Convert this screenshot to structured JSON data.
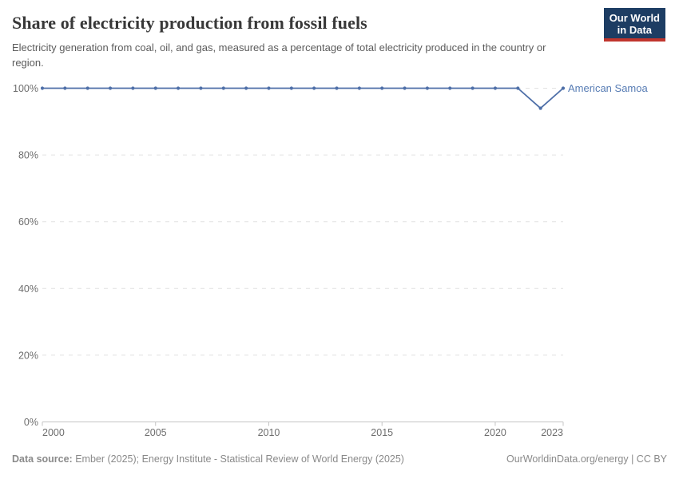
{
  "header": {
    "title": "Share of electricity production from fossil fuels",
    "subtitle": "Electricity generation from coal, oil, and gas, measured as a percentage of total electricity produced in the country or region.",
    "logo": {
      "line1": "Our World",
      "line2": "in Data"
    }
  },
  "chart_data": {
    "type": "line",
    "title": "Share of electricity production from fossil fuels",
    "x": [
      2000,
      2001,
      2002,
      2003,
      2004,
      2005,
      2006,
      2007,
      2008,
      2009,
      2010,
      2011,
      2012,
      2013,
      2014,
      2015,
      2016,
      2017,
      2018,
      2019,
      2020,
      2021,
      2022,
      2023
    ],
    "series": [
      {
        "name": "American Samoa",
        "color": "#4e6fa8",
        "label_color": "#577cb4",
        "values": [
          100,
          100,
          100,
          100,
          100,
          100,
          100,
          100,
          100,
          100,
          100,
          100,
          100,
          100,
          100,
          100,
          100,
          100,
          100,
          100,
          100,
          100,
          94,
          100
        ]
      }
    ],
    "xlim": [
      2000,
      2023
    ],
    "ylim": [
      0,
      100
    ],
    "x_ticks": [
      2000,
      2005,
      2010,
      2015,
      2020,
      2023
    ],
    "x_tick_labels": [
      "2000",
      "2005",
      "2010",
      "2015",
      "2020",
      "2023"
    ],
    "y_ticks": [
      0,
      20,
      40,
      60,
      80,
      100
    ],
    "y_tick_labels": [
      "0%",
      "20%",
      "40%",
      "60%",
      "80%",
      "100%"
    ],
    "grid": "horizontal-dashed",
    "legend_position": "end-of-line",
    "xlabel": "",
    "ylabel": ""
  },
  "footer": {
    "source_label": "Data source:",
    "source_text": "Ember (2025); Energy Institute - Statistical Review of World Energy (2025)",
    "link_text": "OurWorldinData.org/energy | CC BY"
  },
  "colors": {
    "line": "#4e6fa8",
    "grid": "#e2e2e2",
    "axis": "#c4c4c4",
    "tick_label": "#6e6e6e",
    "title": "#383838",
    "subtitle": "#5b5b5b",
    "logo_bg": "#1d3d63",
    "logo_stripe": "#c0352d",
    "footer_text": "#8a8a8a"
  }
}
